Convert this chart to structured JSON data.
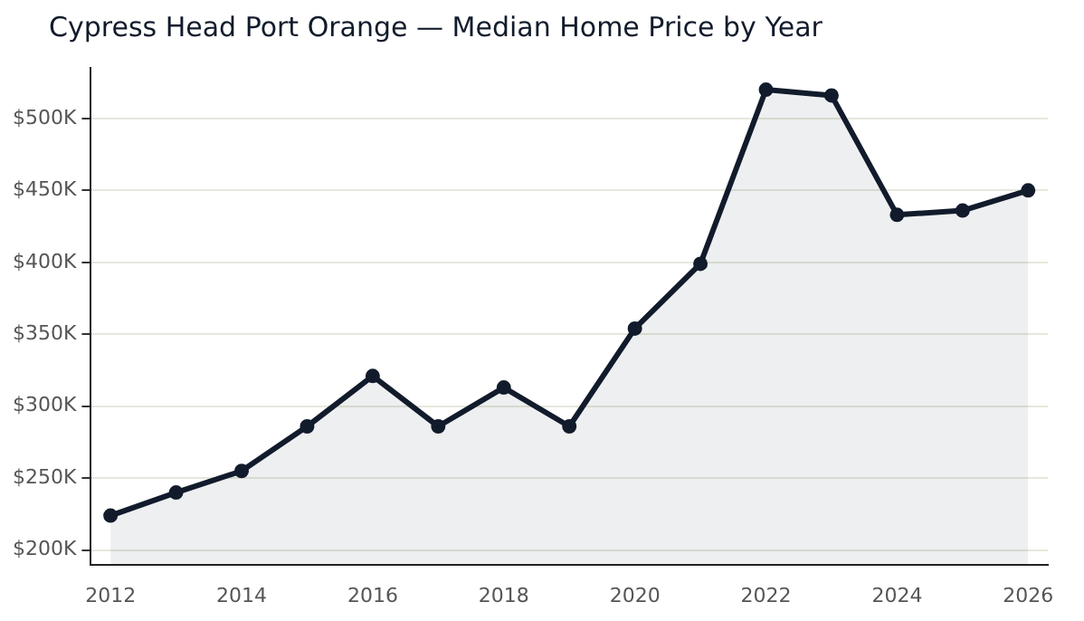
{
  "chart_data": {
    "type": "area",
    "title": "Cypress Head Port Orange — Median Home Price by Year",
    "x": [
      2012,
      2013,
      2014,
      2015,
      2016,
      2017,
      2018,
      2019,
      2020,
      2021,
      2022,
      2023,
      2024,
      2025,
      2026
    ],
    "series": [
      {
        "color": "#111b2b",
        "values": [
          224,
          240,
          255,
          286,
          321,
          286,
          313,
          286,
          354,
          399,
          520,
          516,
          433,
          436,
          450
        ]
      }
    ],
    "xlim": [
      2011.7,
      2026.3
    ],
    "xticks": [
      2012,
      2014,
      2016,
      2018,
      2020,
      2022,
      2024,
      2026
    ],
    "ylim": [
      190,
      535
    ],
    "yticks": [
      {
        "value": 200,
        "label": "$200K"
      },
      {
        "value": 250,
        "label": "$250K"
      },
      {
        "value": 300,
        "label": "$300K"
      },
      {
        "value": 350,
        "label": "$350K"
      },
      {
        "value": 400,
        "label": "$400K"
      },
      {
        "value": 450,
        "label": "$450K"
      },
      {
        "value": 500,
        "label": "$500K"
      }
    ],
    "grid": "y",
    "legend": false,
    "marker": "circle",
    "line_style": "solid"
  }
}
